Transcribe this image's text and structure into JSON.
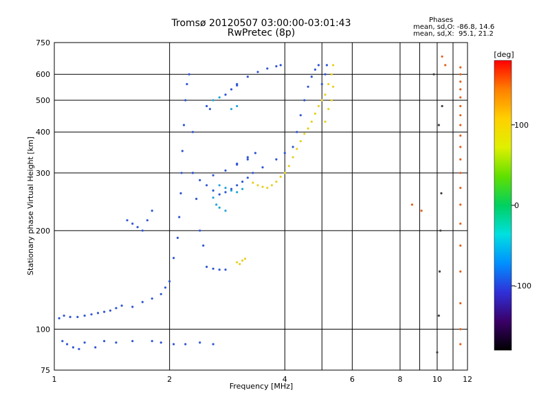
{
  "header": {
    "title_line1": "Tromsø 20120507 03:00:00-03:01:43",
    "title_line2": "RwPretec (8p)",
    "phases_heading": "Phases",
    "phases_line1": "mean, sd,O: -86.8, 14.6",
    "phases_line2": "mean, sd,X:  95.1, 21.2"
  },
  "chart_data": {
    "type": "scatter",
    "title": "Tromsø 20120507 03:00:00-03:01:43",
    "subtitle": "RwPretec (8p)",
    "xlabel": "Frequency [MHz]",
    "ylabel": "Stationary phase Virtual Height [km]",
    "xscale": "log",
    "yscale": "log",
    "xlim": [
      1,
      12
    ],
    "ylim": [
      75,
      750
    ],
    "xticks": [
      1,
      2,
      4,
      6,
      8,
      10,
      12
    ],
    "yticks": [
      75,
      100,
      200,
      300,
      400,
      500,
      600,
      750
    ],
    "xgrid": [
      2,
      4,
      5,
      6,
      8,
      9,
      10,
      11
    ],
    "ygrid": [
      100,
      200,
      300,
      400,
      500,
      600
    ],
    "grid": true,
    "colorbar": {
      "label": "[deg]",
      "range": [
        -180,
        180
      ],
      "ticks": [
        100,
        0,
        -100
      ],
      "tick_labels": [
        "100",
        "0",
        "-100"
      ],
      "colors": [
        "#000000",
        "#3a0068",
        "#3030d8",
        "#0090ff",
        "#00e0e0",
        "#00d060",
        "#60e000",
        "#e0f000",
        "#ffd000",
        "#ff8000",
        "#ff0000"
      ]
    },
    "series": [
      {
        "color": "#2f55d4",
        "points": [
          [
            1.05,
            92
          ],
          [
            1.08,
            90
          ],
          [
            1.12,
            88
          ],
          [
            1.16,
            87
          ],
          [
            1.2,
            91
          ],
          [
            1.28,
            88
          ],
          [
            1.35,
            92
          ],
          [
            1.45,
            91
          ],
          [
            1.6,
            92
          ],
          [
            1.8,
            92
          ],
          [
            1.9,
            91
          ],
          [
            2.05,
            90
          ],
          [
            2.2,
            90
          ],
          [
            2.4,
            91
          ],
          [
            2.6,
            90
          ],
          [
            1.03,
            108
          ],
          [
            1.06,
            110
          ],
          [
            1.1,
            109
          ],
          [
            1.15,
            109
          ],
          [
            1.2,
            110
          ],
          [
            1.25,
            111
          ],
          [
            1.3,
            112
          ],
          [
            1.35,
            113
          ],
          [
            1.4,
            114
          ],
          [
            1.45,
            116
          ],
          [
            1.5,
            118
          ],
          [
            1.6,
            117
          ],
          [
            1.7,
            121
          ],
          [
            1.8,
            124
          ],
          [
            1.9,
            128
          ],
          [
            1.95,
            134
          ],
          [
            2.0,
            140
          ],
          [
            2.05,
            165
          ],
          [
            2.1,
            190
          ],
          [
            2.12,
            220
          ],
          [
            2.14,
            260
          ],
          [
            2.15,
            300
          ],
          [
            2.16,
            350
          ],
          [
            2.18,
            420
          ],
          [
            2.2,
            500
          ],
          [
            2.22,
            560
          ],
          [
            2.25,
            600
          ],
          [
            1.55,
            215
          ],
          [
            1.6,
            210
          ],
          [
            1.65,
            205
          ],
          [
            1.7,
            200
          ],
          [
            1.75,
            215
          ],
          [
            1.8,
            230
          ],
          [
            2.3,
            300
          ],
          [
            2.4,
            285
          ],
          [
            2.5,
            275
          ],
          [
            2.6,
            265
          ],
          [
            2.7,
            258
          ],
          [
            2.8,
            262
          ],
          [
            2.9,
            268
          ],
          [
            3.0,
            275
          ],
          [
            3.1,
            282
          ],
          [
            3.2,
            290
          ],
          [
            3.3,
            300
          ],
          [
            3.5,
            312
          ],
          [
            3.8,
            330
          ],
          [
            4.0,
            345
          ],
          [
            2.6,
            295
          ],
          [
            2.8,
            305
          ],
          [
            3.0,
            320
          ],
          [
            3.2,
            335
          ],
          [
            3.35,
            345
          ],
          [
            3.2,
            330
          ],
          [
            3.0,
            318
          ],
          [
            3.0,
            560
          ],
          [
            3.2,
            590
          ],
          [
            3.4,
            610
          ],
          [
            3.6,
            625
          ],
          [
            3.8,
            635
          ],
          [
            3.9,
            640
          ],
          [
            2.8,
            520
          ],
          [
            2.9,
            540
          ],
          [
            3.0,
            555
          ],
          [
            2.5,
            480
          ],
          [
            2.55,
            470
          ],
          [
            4.2,
            360
          ],
          [
            4.3,
            400
          ],
          [
            4.4,
            450
          ],
          [
            4.5,
            500
          ],
          [
            4.6,
            550
          ],
          [
            4.7,
            590
          ],
          [
            4.8,
            620
          ],
          [
            4.9,
            640
          ],
          [
            5.0,
            560
          ],
          [
            5.1,
            600
          ],
          [
            5.15,
            640
          ],
          [
            2.3,
            400
          ],
          [
            2.3,
            300
          ],
          [
            2.35,
            250
          ],
          [
            2.4,
            200
          ],
          [
            2.45,
            180
          ],
          [
            2.5,
            155
          ],
          [
            2.6,
            153
          ],
          [
            2.7,
            152
          ],
          [
            2.8,
            152
          ]
        ]
      },
      {
        "color": "#1fa6d8",
        "points": [
          [
            2.7,
            275
          ],
          [
            2.8,
            270
          ],
          [
            2.9,
            265
          ],
          [
            3.0,
            262
          ],
          [
            3.1,
            268
          ],
          [
            2.6,
            252
          ],
          [
            2.65,
            240
          ],
          [
            2.7,
            235
          ],
          [
            2.8,
            230
          ],
          [
            2.9,
            470
          ],
          [
            3.0,
            480
          ],
          [
            2.6,
            500
          ],
          [
            2.7,
            510
          ]
        ]
      },
      {
        "color": "#e8d020",
        "points": [
          [
            3.3,
            280
          ],
          [
            3.4,
            275
          ],
          [
            3.5,
            272
          ],
          [
            3.6,
            270
          ],
          [
            3.7,
            275
          ],
          [
            3.8,
            282
          ],
          [
            3.9,
            292
          ],
          [
            4.0,
            300
          ],
          [
            4.1,
            315
          ],
          [
            4.2,
            335
          ],
          [
            4.3,
            355
          ],
          [
            4.4,
            375
          ],
          [
            4.5,
            395
          ],
          [
            4.6,
            410
          ],
          [
            4.7,
            430
          ],
          [
            4.8,
            455
          ],
          [
            4.9,
            480
          ],
          [
            5.0,
            500
          ],
          [
            5.1,
            520
          ],
          [
            5.2,
            560
          ],
          [
            5.3,
            600
          ],
          [
            5.35,
            640
          ],
          [
            5.1,
            430
          ],
          [
            5.2,
            470
          ],
          [
            5.3,
            500
          ],
          [
            5.35,
            550
          ],
          [
            3.0,
            160
          ],
          [
            3.05,
            158
          ],
          [
            3.1,
            162
          ],
          [
            3.15,
            164
          ]
        ]
      },
      {
        "color": "#e06020",
        "points": [
          [
            11.5,
            90
          ],
          [
            11.5,
            100
          ],
          [
            11.5,
            120
          ],
          [
            11.5,
            150
          ],
          [
            11.5,
            180
          ],
          [
            11.5,
            210
          ],
          [
            11.5,
            240
          ],
          [
            11.5,
            270
          ],
          [
            11.5,
            300
          ],
          [
            11.5,
            330
          ],
          [
            11.5,
            360
          ],
          [
            11.5,
            390
          ],
          [
            11.5,
            420
          ],
          [
            11.5,
            450
          ],
          [
            11.5,
            480
          ],
          [
            11.5,
            510
          ],
          [
            11.5,
            540
          ],
          [
            11.5,
            570
          ],
          [
            11.5,
            600
          ],
          [
            11.5,
            630
          ],
          [
            10.3,
            680
          ],
          [
            10.5,
            640
          ],
          [
            8.6,
            240
          ],
          [
            9.1,
            230
          ]
        ]
      },
      {
        "color": "#404040",
        "points": [
          [
            10.0,
            85
          ],
          [
            10.1,
            110
          ],
          [
            10.15,
            150
          ],
          [
            10.2,
            200
          ],
          [
            10.25,
            260
          ],
          [
            10.1,
            420
          ],
          [
            10.3,
            480
          ],
          [
            9.8,
            600
          ]
        ]
      }
    ]
  }
}
